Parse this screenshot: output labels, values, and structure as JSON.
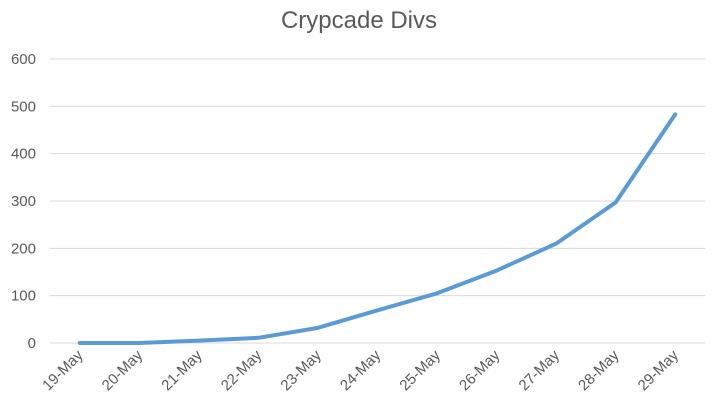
{
  "chart_data": {
    "type": "line",
    "title": "Crypcade Divs",
    "xlabel": "",
    "ylabel": "",
    "categories": [
      "19-May",
      "20-May",
      "21-May",
      "22-May",
      "23-May",
      "24-May",
      "25-May",
      "26-May",
      "27-May",
      "28-May",
      "29-May"
    ],
    "series": [
      {
        "values": [
          0,
          0,
          5,
          11,
          32,
          69,
          105,
          153,
          210,
          297,
          483
        ],
        "color": "#5b9bd5"
      }
    ],
    "ylim": [
      0,
      600
    ],
    "yticks": [
      0,
      100,
      200,
      300,
      400,
      500,
      600
    ],
    "grid": "horizontal",
    "legend": "none"
  }
}
